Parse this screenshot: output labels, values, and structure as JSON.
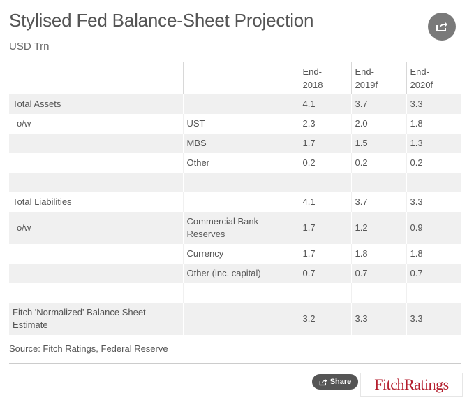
{
  "header": {
    "title": "Stylised Fed Balance-Sheet Projection",
    "subtitle": "USD Trn"
  },
  "table": {
    "columns": [
      "",
      "",
      "End-\n2018",
      "End-\n2019f",
      "End-\n2020f"
    ],
    "rows": [
      {
        "label": "Total Assets",
        "sub": "",
        "v1": "4.1",
        "v2": "3.7",
        "v3": "3.3"
      },
      {
        "label": "o/w",
        "sub": "UST",
        "v1": "2.3",
        "v2": "2.0",
        "v3": "1.8"
      },
      {
        "label": "",
        "sub": "MBS",
        "v1": "1.7",
        "v2": "1.5",
        "v3": "1.3"
      },
      {
        "label": "",
        "sub": "Other",
        "v1": "0.2",
        "v2": "0.2",
        "v3": "0.2"
      },
      {
        "label": "",
        "sub": "",
        "v1": "",
        "v2": "",
        "v3": ""
      },
      {
        "label": "Total Liabilities",
        "sub": "",
        "v1": "4.1",
        "v2": "3.7",
        "v3": "3.3"
      },
      {
        "label": "o/w",
        "sub": "Commercial Bank Reserves",
        "v1": "1.7",
        "v2": "1.2",
        "v3": "0.9"
      },
      {
        "label": "",
        "sub": "Currency",
        "v1": "1.7",
        "v2": "1.8",
        "v3": "1.8"
      },
      {
        "label": "",
        "sub": "Other (inc. capital)",
        "v1": "0.7",
        "v2": "0.7",
        "v3": "0.7"
      },
      {
        "label": "",
        "sub": "",
        "v1": "",
        "v2": "",
        "v3": ""
      },
      {
        "label": "Fitch 'Normalized' Balance Sheet Estimate",
        "sub": "",
        "v1": "3.2",
        "v2": "3.3",
        "v3": "3.3"
      }
    ]
  },
  "footer": {
    "source": "Source: Fitch Ratings, Federal Reserve",
    "share_label": "Share",
    "logo_text": "FitchRatings"
  },
  "icons": {
    "share_top": "share-icon",
    "share_pill": "share-icon"
  },
  "colors": {
    "brand": "#b41e2d",
    "stripe": "#f0f0f0",
    "share_button": "#7a7a7a",
    "pill": "#555555"
  }
}
